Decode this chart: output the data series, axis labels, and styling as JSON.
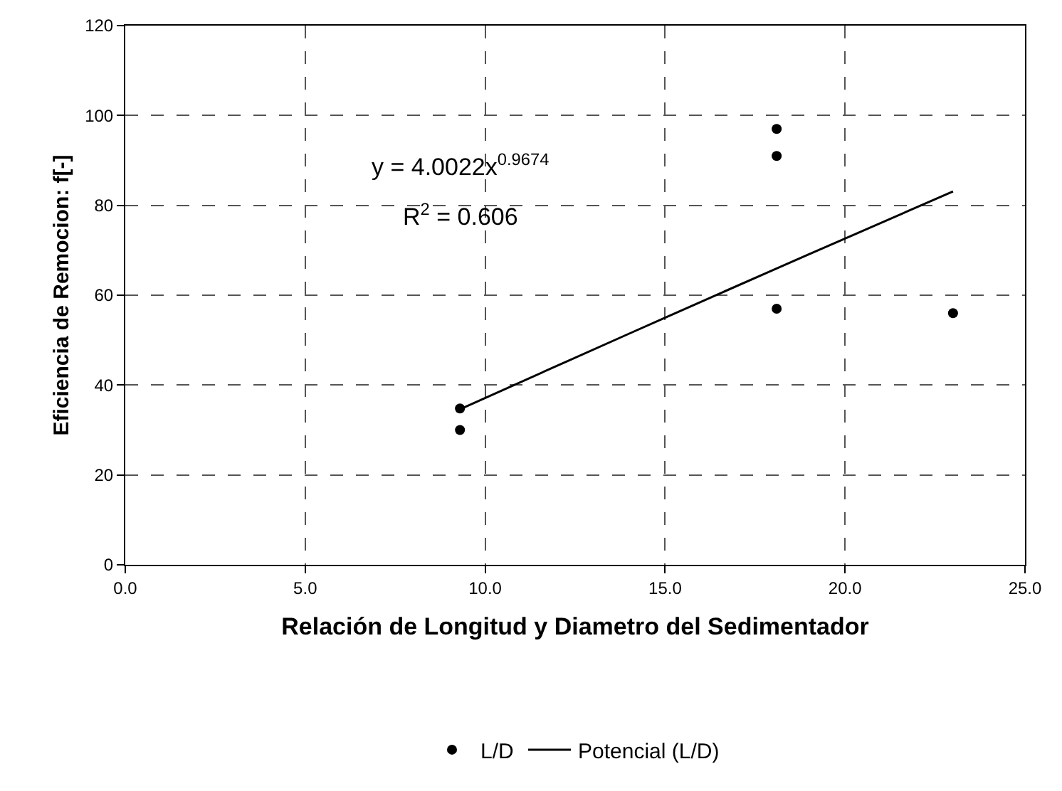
{
  "chart_data": {
    "type": "scatter",
    "xlabel": "Relación de Longitud y Diametro del Sedimentador",
    "ylabel": "Eficiencia de Remocion: f[-]",
    "series": [
      {
        "name": "L/D",
        "color": "#000000",
        "marker": "circle",
        "x": [
          9.3,
          9.3,
          18.1,
          18.1,
          18.1,
          23.0
        ],
        "values": [
          34.8,
          30,
          97,
          91,
          57,
          56
        ]
      },
      {
        "name": "Potencial (L/D)",
        "type": "line",
        "color": "#000000",
        "marker": "none",
        "line_style": "solid",
        "x": [
          9.3,
          12,
          15,
          18,
          20,
          23
        ],
        "values": [
          34.6,
          44.3,
          55.0,
          65.6,
          72.6,
          83.1
        ]
      }
    ],
    "annotations": [
      "y = 4.0022x$^{0.9674}$",
      "R$^{2}$ = 0.606"
    ],
    "xlim": [
      0,
      25
    ],
    "xticks": [
      {
        "value": 0,
        "label": "0.0"
      },
      {
        "value": 5,
        "label": "5.0"
      },
      {
        "value": 10,
        "label": "10.0"
      },
      {
        "value": 15,
        "label": "15.0"
      },
      {
        "value": 20,
        "label": "20.0"
      },
      {
        "value": 25,
        "label": "25.0"
      }
    ],
    "ylim": [
      0,
      120
    ],
    "yticks": [
      0,
      20,
      40,
      60,
      80,
      100,
      120
    ],
    "grid": true,
    "legend": "bottom"
  }
}
